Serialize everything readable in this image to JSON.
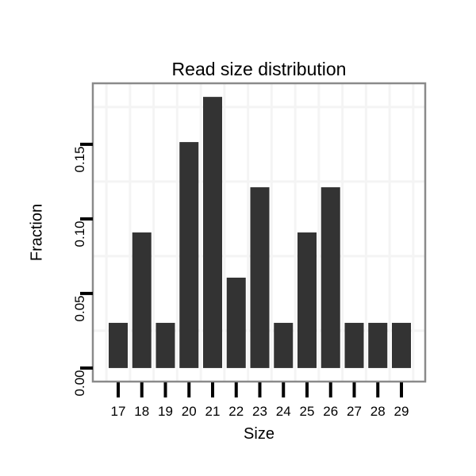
{
  "chart_data": {
    "type": "bar",
    "title": "Read size distribution",
    "xlabel": "Size",
    "ylabel": "Fraction",
    "categories": [
      "17",
      "18",
      "19",
      "20",
      "21",
      "22",
      "23",
      "24",
      "25",
      "26",
      "27",
      "28",
      "29"
    ],
    "values": [
      0.0303,
      0.0909,
      0.0303,
      0.1515,
      0.1818,
      0.0606,
      0.1212,
      0.0303,
      0.0909,
      0.1212,
      0.0303,
      0.0303,
      0.0303
    ],
    "ylim": [
      -0.009091,
      0.190909
    ],
    "y_ticks": [
      {
        "value": 0.0,
        "label": "0.00"
      },
      {
        "value": 0.05,
        "label": "0.05"
      },
      {
        "value": 0.1,
        "label": "0.10"
      },
      {
        "value": 0.15,
        "label": "0.15"
      }
    ],
    "y_minor_gridlines": [
      0.025,
      0.075,
      0.125,
      0.175
    ],
    "grid": "faint minor gridlines only",
    "legend_position": "none",
    "colors": {
      "bar": "#333333",
      "panel_background": "#ffffff",
      "panel_border": "#8a8a8a",
      "gridline": "#f4f4f4",
      "tick": "#000000",
      "text": "#000000"
    }
  }
}
